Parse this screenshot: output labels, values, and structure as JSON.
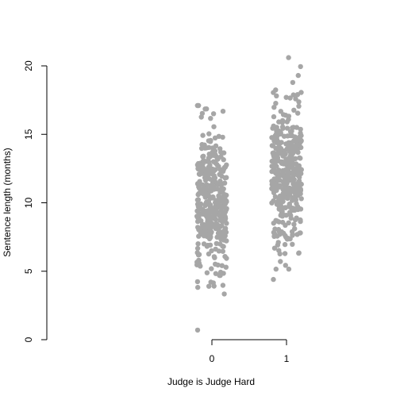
{
  "chart_data": {
    "type": "scatter",
    "title": "",
    "xlabel": "Judge is Judge Hard",
    "ylabel": "Sentence length (months)",
    "x_categories": [
      0,
      1
    ],
    "x_tick_labels": [
      "0",
      "1"
    ],
    "x_range": [
      -2.2,
      1.9
    ],
    "y_range": [
      0,
      20
    ],
    "y_ticks": [
      0,
      5,
      10,
      15,
      20
    ],
    "y_tick_labels": [
      "0",
      "5",
      "10",
      "15",
      "20"
    ],
    "jitter_half_width": 0.2,
    "grid": false,
    "legend": "none",
    "point_color": "#a6a6a6",
    "series": [
      {
        "x": 0,
        "n": 380,
        "y_min": 0.7,
        "y_max": 17.1,
        "y_mean": 10.0,
        "y_sd": 2.8
      },
      {
        "x": 1,
        "n": 380,
        "y_min": 4.4,
        "y_max": 20.6,
        "y_mean": 12.2,
        "y_sd": 2.8
      }
    ]
  }
}
